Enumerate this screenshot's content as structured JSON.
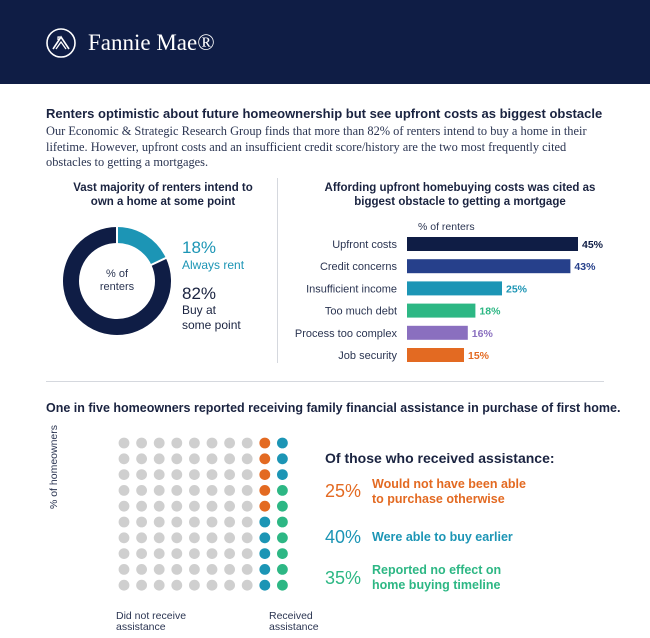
{
  "header": {
    "logo_text": "Fannie Mae®"
  },
  "section1": {
    "title": "Renters optimistic about future homeownership but see upfront costs as biggest obstacle",
    "description": "Our Economic & Strategic Research Group finds that more than 82% of renters intend to buy a home in their lifetime. However, upfront costs and an insufficient credit score/history are the two most frequently cited obstacles to getting a mortgages."
  },
  "donut": {
    "title_line1": "Vast majority of renters intend to",
    "title_line2": "own a home at some point",
    "center_line1": "% of",
    "center_line2": "renters",
    "rent_pct": "18%",
    "rent_label": "Always rent",
    "buy_pct": "82%",
    "buy_label_line1": "Buy at",
    "buy_label_line2": "some point"
  },
  "bars": {
    "title_line1": "Affording upfront homebuying costs was cited as",
    "title_line2": "biggest obstacle to getting a mortgage",
    "caption": "% of renters"
  },
  "section2": {
    "title": "One in five homeowners reported receiving family financial assistance in purchase of first home.",
    "y_label": "% of homeowners",
    "left_label_line1": "Did not receive",
    "left_label_line2": "assistance",
    "right_label_line1": "Received",
    "right_label_line2": "assistance",
    "assist_title": "Of those who received assistance:",
    "items": [
      {
        "pct": "25%",
        "line1": "Would not have been able",
        "line2": "to purchase otherwise"
      },
      {
        "pct": "40%",
        "line1": "Were able to buy earlier",
        "line2": ""
      },
      {
        "pct": "35%",
        "line1": "Reported no effect on",
        "line2": "home buying timeline"
      }
    ]
  },
  "colors": {
    "navy": "#0f1d45",
    "dark_blue": "#26408b",
    "teal": "#1c95b5",
    "green": "#2db784",
    "purple": "#8a6fbf",
    "orange": "#e36a22",
    "gray_dot": "#cfcfcf"
  },
  "chart_data": [
    {
      "type": "pie",
      "title": "Vast majority of renters intend to own a home at some point",
      "labels": [
        "Always rent",
        "Buy at some point"
      ],
      "values": [
        18,
        82
      ],
      "colors": [
        "#1c95b5",
        "#0f1d45"
      ]
    },
    {
      "type": "bar",
      "orientation": "horizontal",
      "title": "Affording upfront homebuying costs was cited as biggest obstacle to getting a mortgage",
      "xlabel": "% of renters",
      "categories": [
        "Upfront costs",
        "Credit concerns",
        "Insufficient income",
        "Too much debt",
        "Process too complex",
        "Job security"
      ],
      "values": [
        45,
        43,
        25,
        18,
        16,
        15
      ],
      "value_labels": [
        "45%",
        "43%",
        "25%",
        "18%",
        "16%",
        "15%"
      ],
      "colors": [
        "#0f1d45",
        "#26408b",
        "#1c95b5",
        "#2db784",
        "#8a6fbf",
        "#e36a22"
      ],
      "xlim": [
        0,
        45
      ]
    },
    {
      "type": "waffle",
      "ylabel": "% of homeowners",
      "total_dots": 100,
      "groups": [
        {
          "name": "Did not receive assistance",
          "count": 80,
          "color": "#cfcfcf"
        },
        {
          "name": "Would not have been able to purchase otherwise",
          "count": 5,
          "color": "#e36a22"
        },
        {
          "name": "Were able to buy earlier",
          "count": 8,
          "color": "#1c95b5"
        },
        {
          "name": "Reported no effect on home buying timeline",
          "count": 7,
          "color": "#2db784"
        }
      ]
    }
  ]
}
